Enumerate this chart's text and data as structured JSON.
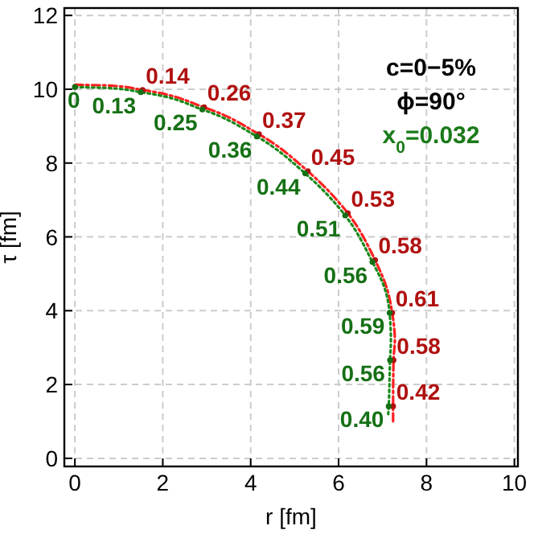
{
  "chart_data": {
    "type": "line",
    "xlabel": "r [fm]",
    "ylabel": "τ [fm]",
    "xlim": [
      -0.24,
      10.08
    ],
    "ylim": [
      -0.22,
      12.2
    ],
    "xticks": [
      0,
      2,
      4,
      6,
      8,
      10
    ],
    "yticks": [
      0,
      2,
      4,
      6,
      8,
      10,
      12
    ],
    "grid": true,
    "series": [
      {
        "color": "#ff2020",
        "line_style": "dashed",
        "x": [
          0,
          0.8,
          1.54,
          2.94,
          4.19,
          5.3,
          6.21,
          6.83,
          7.1,
          7.22,
          7.28,
          7.25,
          7.24,
          7.24
        ],
        "values": [
          10.12,
          10.1,
          9.98,
          9.51,
          8.78,
          7.78,
          6.64,
          5.37,
          4.6,
          3.94,
          3.2,
          2.66,
          1.41,
          1.0
        ]
      },
      {
        "color": "#1a8a1a",
        "line_style": "dotted",
        "x": [
          0,
          0.8,
          1.5,
          2.9,
          4.14,
          5.24,
          6.15,
          6.77,
          7.05,
          7.16,
          7.19,
          7.17,
          7.14,
          7.13
        ],
        "values": [
          10.06,
          10.03,
          9.92,
          9.45,
          8.72,
          7.72,
          6.58,
          5.32,
          4.6,
          3.94,
          3.2,
          2.66,
          1.41,
          1.2
        ]
      }
    ],
    "annotations": [
      "c=0−5%",
      "ϕ=90°",
      "x$_{0}$=0.032",
      {
        "text": "0.14",
        "x": 1.54,
        "y": 9.98
      },
      {
        "text": "0.26",
        "x": 2.94,
        "y": 9.51
      },
      {
        "text": "0.37",
        "x": 4.19,
        "y": 8.78
      },
      {
        "text": "0.45",
        "x": 5.3,
        "y": 7.78
      },
      {
        "text": "0.53",
        "x": 6.21,
        "y": 6.64
      },
      {
        "text": "0.58",
        "x": 6.83,
        "y": 5.37
      },
      {
        "text": "0.61",
        "x": 7.22,
        "y": 3.94
      },
      {
        "text": "0.58",
        "x": 7.25,
        "y": 2.66
      },
      {
        "text": "0.42",
        "x": 7.24,
        "y": 1.41
      },
      {
        "text": "0",
        "x": 0,
        "y": 10.06
      },
      {
        "text": "0.13",
        "x": 1.5,
        "y": 9.92
      },
      {
        "text": "0.25",
        "x": 2.9,
        "y": 9.45
      },
      {
        "text": "0.36",
        "x": 4.14,
        "y": 8.72
      },
      {
        "text": "0.44",
        "x": 5.24,
        "y": 7.72
      },
      {
        "text": "0.51",
        "x": 6.15,
        "y": 6.58
      },
      {
        "text": "0.56",
        "x": 6.77,
        "y": 5.32
      },
      {
        "text": "0.59",
        "x": 7.16,
        "y": 3.94
      },
      {
        "text": "0.56",
        "x": 7.17,
        "y": 2.66
      },
      {
        "text": "0.40",
        "x": 7.14,
        "y": 1.41
      }
    ]
  }
}
